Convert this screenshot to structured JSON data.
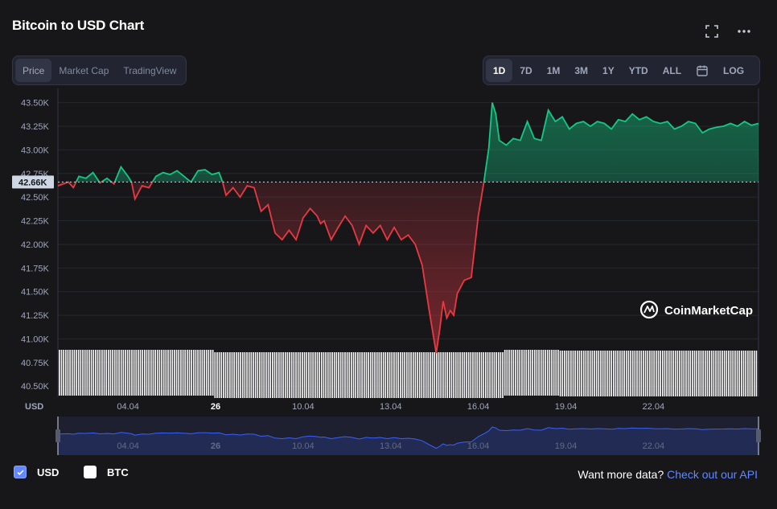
{
  "header": {
    "title": "Bitcoin to USD Chart",
    "fullscreen_icon": "expand-icon",
    "more_icon": "more-horizontal-icon"
  },
  "tabs": [
    {
      "label": "Price",
      "active": true
    },
    {
      "label": "Market Cap",
      "active": false
    },
    {
      "label": "TradingView",
      "active": false
    }
  ],
  "ranges": [
    {
      "label": "1D",
      "active": true
    },
    {
      "label": "7D",
      "active": false
    },
    {
      "label": "1M",
      "active": false
    },
    {
      "label": "3M",
      "active": false
    },
    {
      "label": "1Y",
      "active": false
    },
    {
      "label": "YTD",
      "active": false
    },
    {
      "label": "ALL",
      "active": false
    }
  ],
  "calendar_icon": "calendar-icon",
  "log_label": "LOG",
  "watermark": "CoinMarketCap",
  "legend": {
    "usd": {
      "label": "USD",
      "checked": true
    },
    "btc": {
      "label": "BTC",
      "checked": false
    }
  },
  "promo": {
    "text": "Want more data?",
    "link": "Check out our API"
  },
  "colors": {
    "up": "#16c784",
    "down": "#ea3943",
    "navigator": "#3861fb",
    "background": "#17171a"
  },
  "chart_data": {
    "type": "line",
    "reference_value": 42.66,
    "reference_label": "42.66K",
    "y_ticks": [
      40.5,
      40.75,
      41.0,
      41.25,
      41.5,
      41.75,
      42.0,
      42.25,
      42.5,
      42.75,
      43.0,
      43.25,
      43.5
    ],
    "y_tick_labels": [
      "40.50K",
      "40.75K",
      "41.00K",
      "41.25K",
      "41.50K",
      "41.75K",
      "42.00K",
      "42.25K",
      "42.50K",
      "42.75K",
      "43.00K",
      "43.25K",
      "43.50K"
    ],
    "ylim": [
      40.4,
      43.65
    ],
    "y_unit": "USD",
    "x_ticks": [
      {
        "label": "04.04",
        "x": 0.1,
        "bold": false
      },
      {
        "label": "26",
        "x": 0.225,
        "bold": true
      },
      {
        "label": "10.04",
        "x": 0.35,
        "bold": false
      },
      {
        "label": "13.04",
        "x": 0.475,
        "bold": false
      },
      {
        "label": "16.04",
        "x": 0.6,
        "bold": false
      },
      {
        "label": "19.04",
        "x": 0.725,
        "bold": false
      },
      {
        "label": "22.04",
        "x": 0.85,
        "bold": false
      }
    ],
    "series": [
      {
        "x": [
          0,
          0.015,
          0.022,
          0.03,
          0.04,
          0.05,
          0.06,
          0.07,
          0.08,
          0.09,
          0.1,
          0.105,
          0.11,
          0.12,
          0.13,
          0.14,
          0.15,
          0.16,
          0.17,
          0.18,
          0.19,
          0.2,
          0.21,
          0.22,
          0.23,
          0.235,
          0.24,
          0.25,
          0.26,
          0.27,
          0.28,
          0.29,
          0.3,
          0.31,
          0.32,
          0.33,
          0.34,
          0.35,
          0.36,
          0.37,
          0.375,
          0.38,
          0.39,
          0.4,
          0.41,
          0.42,
          0.43,
          0.44,
          0.45,
          0.46,
          0.47,
          0.48,
          0.49,
          0.5,
          0.51,
          0.52,
          0.53,
          0.54,
          0.545,
          0.55,
          0.555,
          0.56,
          0.565,
          0.57,
          0.58,
          0.59,
          0.6,
          0.608,
          0.615,
          0.62,
          0.625,
          0.63,
          0.64,
          0.65,
          0.66,
          0.67,
          0.68,
          0.69,
          0.7,
          0.71,
          0.72,
          0.73,
          0.74,
          0.75,
          0.76,
          0.77,
          0.78,
          0.79,
          0.8,
          0.81,
          0.82,
          0.83,
          0.84,
          0.85,
          0.86,
          0.87,
          0.88,
          0.89,
          0.9,
          0.91,
          0.92,
          0.93,
          0.94,
          0.95,
          0.96,
          0.97,
          0.98,
          0.99,
          1.0
        ],
        "y": [
          42.62,
          42.66,
          42.6,
          42.72,
          42.7,
          42.76,
          42.65,
          42.7,
          42.64,
          42.82,
          42.72,
          42.66,
          42.48,
          42.62,
          42.6,
          42.72,
          42.76,
          42.74,
          42.78,
          42.72,
          42.66,
          42.78,
          42.79,
          42.74,
          42.76,
          42.66,
          42.52,
          42.6,
          42.5,
          42.62,
          42.6,
          42.35,
          42.42,
          42.12,
          42.05,
          42.15,
          42.05,
          42.28,
          42.38,
          42.3,
          42.22,
          42.25,
          42.05,
          42.18,
          42.3,
          42.2,
          42.0,
          42.2,
          42.12,
          42.2,
          42.05,
          42.18,
          42.05,
          42.1,
          42.0,
          41.78,
          41.3,
          40.85,
          41.1,
          41.4,
          41.22,
          41.3,
          41.25,
          41.48,
          41.62,
          41.65,
          42.3,
          42.66,
          43.02,
          43.5,
          43.38,
          43.1,
          43.05,
          43.12,
          43.1,
          43.3,
          43.12,
          43.1,
          43.42,
          43.3,
          43.35,
          43.22,
          43.28,
          43.3,
          43.25,
          43.3,
          43.28,
          43.22,
          43.32,
          43.3,
          43.38,
          43.32,
          43.35,
          43.3,
          43.28,
          43.3,
          43.22,
          43.25,
          43.3,
          43.28,
          43.18,
          43.22,
          43.24,
          43.25,
          43.28,
          43.25,
          43.3,
          43.26,
          43.28
        ]
      }
    ],
    "navigator_ticks": [
      "04.04",
      "26",
      "10.04",
      "13.04",
      "16.04",
      "19.04",
      "22.04"
    ]
  }
}
